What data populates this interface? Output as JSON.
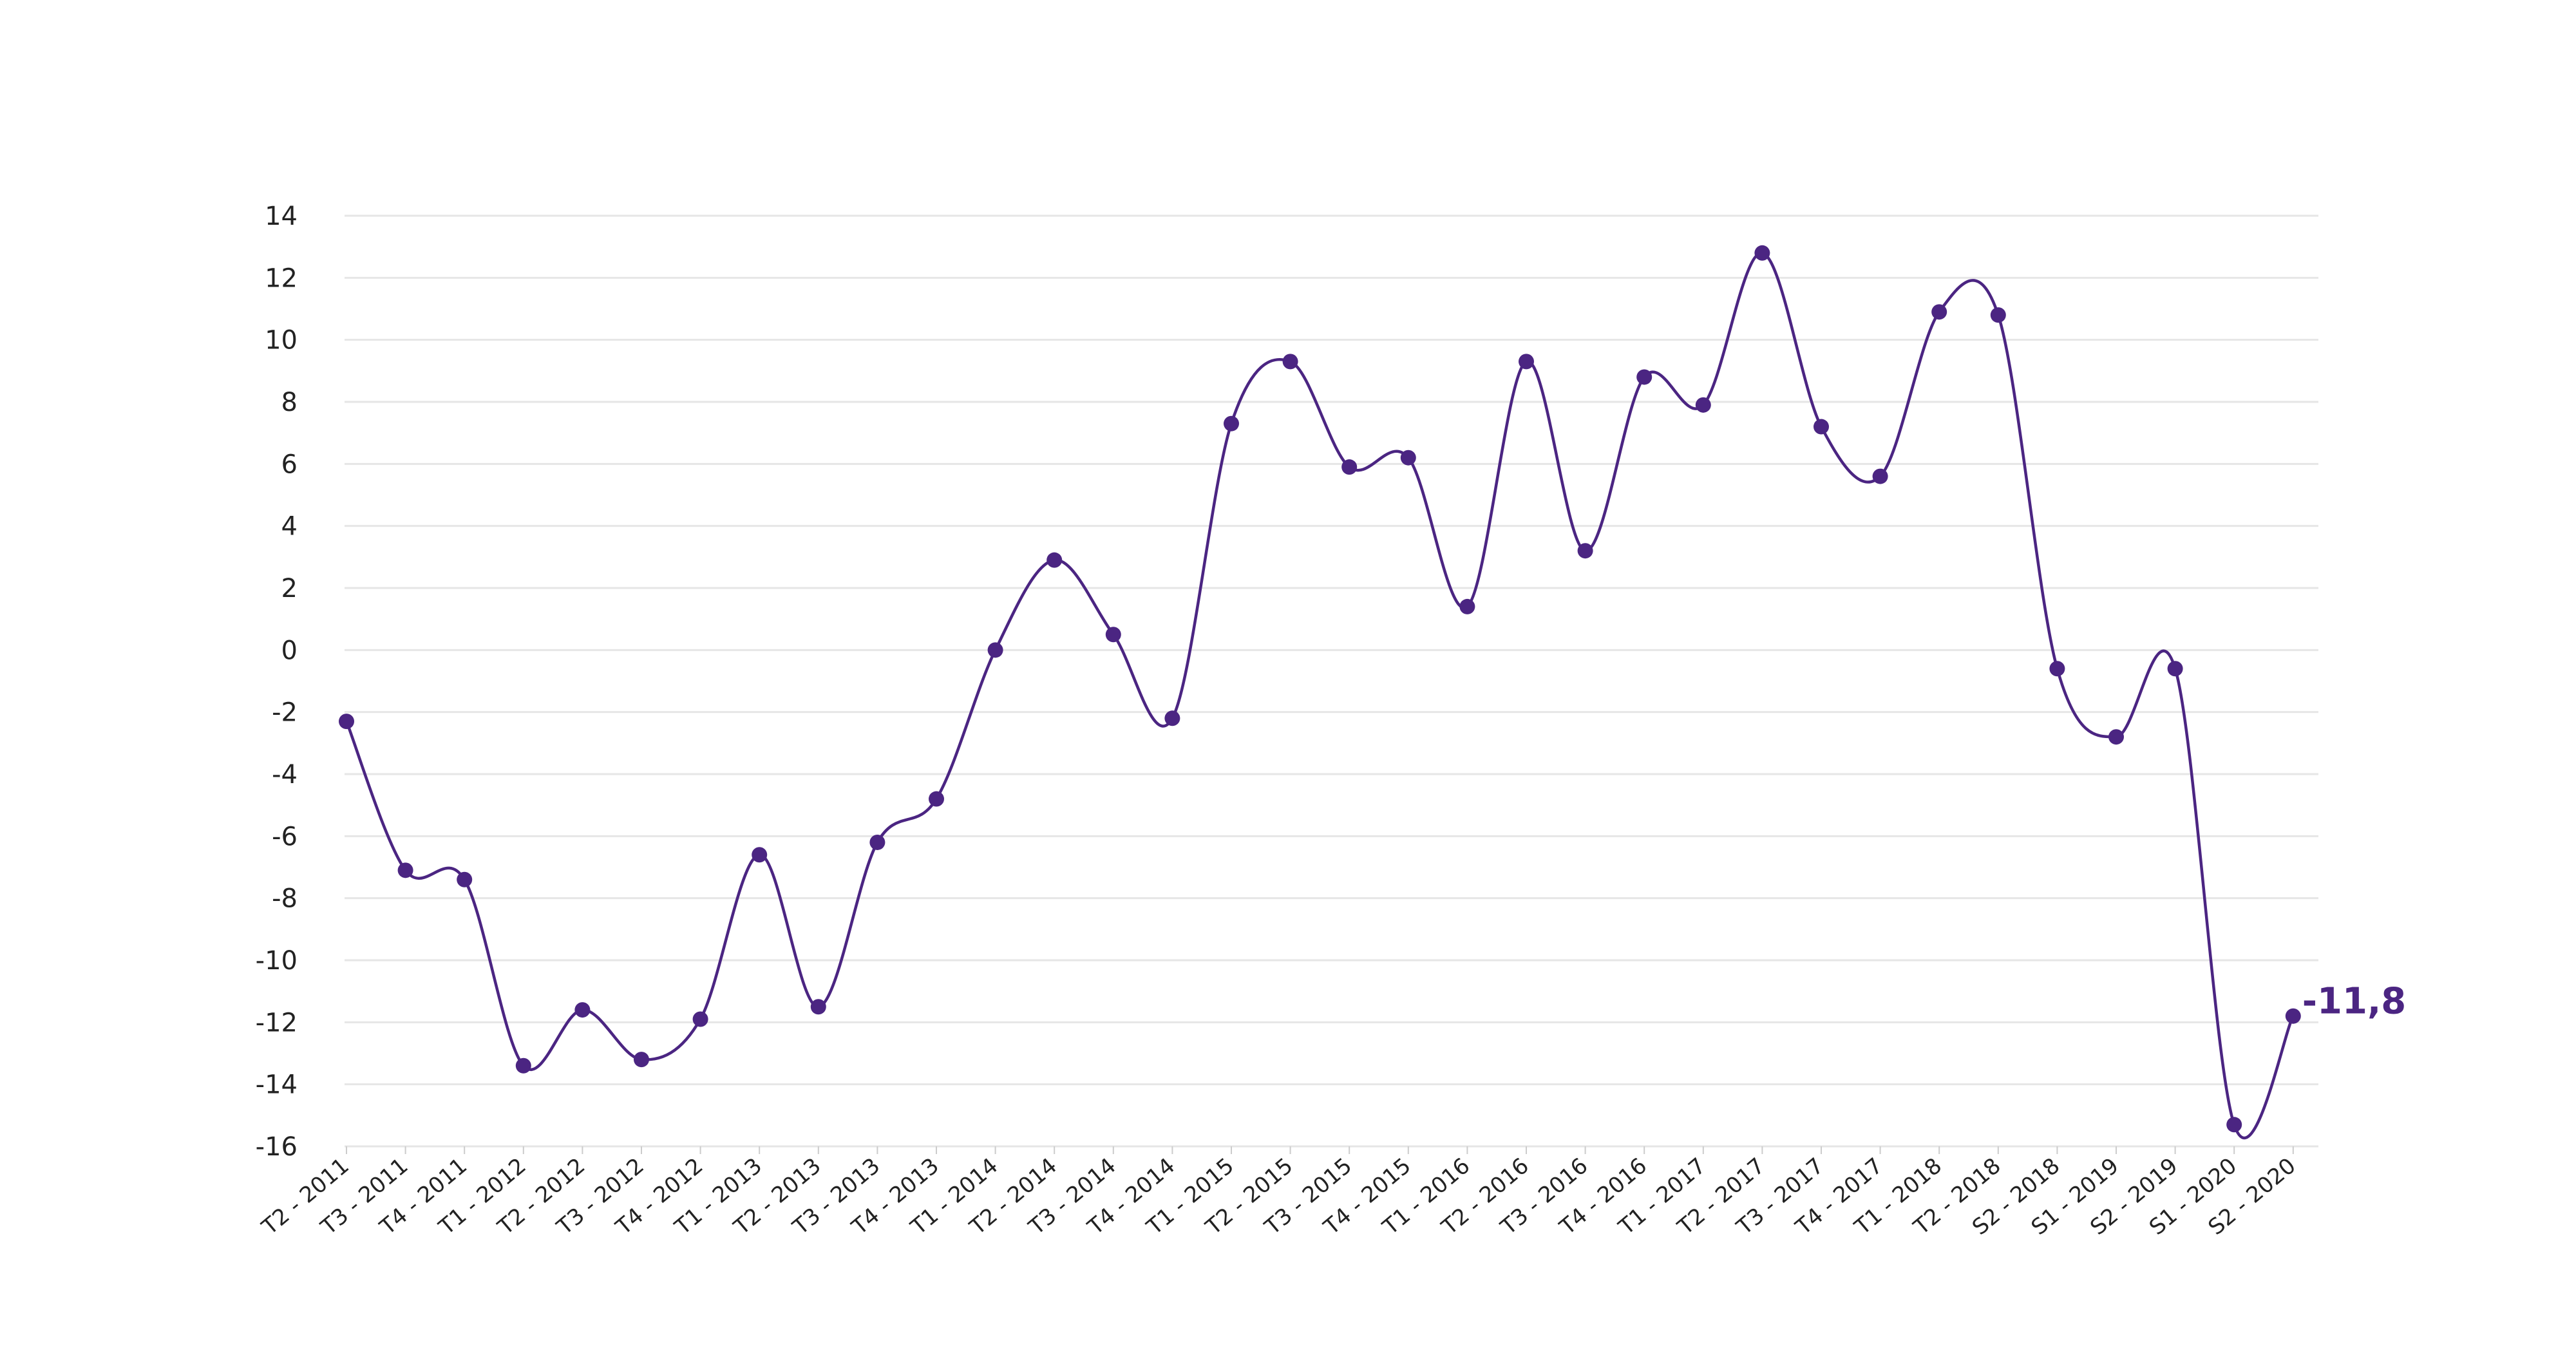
{
  "colors": {
    "series": "#4b2582",
    "grid": "#e6e6e6",
    "text": "#222222"
  },
  "chart_data": {
    "type": "line",
    "title": "",
    "xlabel": "",
    "ylabel": "",
    "ylim": [
      -16,
      14
    ],
    "yticks": [
      14,
      12,
      10,
      8,
      6,
      4,
      2,
      0,
      -2,
      -4,
      -6,
      -8,
      -10,
      -12,
      -14,
      -16
    ],
    "grid": true,
    "legend": "none",
    "categories": [
      "T2 - 2011",
      "T3 - 2011",
      "T4 - 2011",
      "T1 - 2012",
      "T2 - 2012",
      "T3 - 2012",
      "T4 - 2012",
      "T1 - 2013",
      "T2 - 2013",
      "T3 - 2013",
      "T4 - 2013",
      "T1 - 2014",
      "T2 - 2014",
      "T3 - 2014",
      "T4 - 2014",
      "T1 - 2015",
      "T2 - 2015",
      "T3 - 2015",
      "T4 - 2015",
      "T1 - 2016",
      "T2 - 2016",
      "T3 - 2016",
      "T4 - 2016",
      "T1 - 2017",
      "T2 - 2017",
      "T3 - 2017",
      "T4 - 2017",
      "T1 - 2018",
      "T2 - 2018",
      "S2 - 2018",
      "S1 - 2019",
      "S2 - 2019",
      "S1 - 2020",
      "S2 - 2020"
    ],
    "series": [
      {
        "values": [
          -2.3,
          -7.1,
          -7.4,
          -13.4,
          -11.6,
          -13.2,
          -11.9,
          -6.6,
          -11.5,
          -6.2,
          -4.8,
          0.0,
          2.9,
          0.5,
          -2.2,
          7.3,
          9.3,
          5.9,
          6.2,
          1.4,
          9.3,
          3.2,
          8.8,
          7.9,
          12.8,
          7.2,
          5.6,
          10.9,
          10.8,
          -0.6,
          -2.8,
          -0.6,
          -15.3,
          -11.8
        ]
      }
    ],
    "annotations": [
      {
        "text": "-11,8",
        "category": "S2 - 2020"
      }
    ]
  }
}
